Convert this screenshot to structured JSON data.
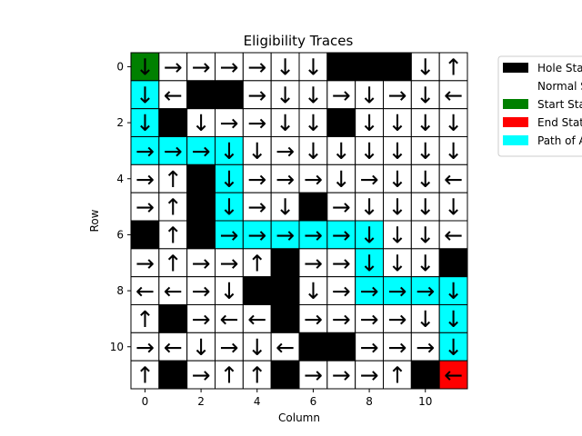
{
  "chart_data": {
    "type": "heatmap",
    "title": "Eligibility Traces",
    "xlabel": "Column",
    "ylabel": "Row",
    "xlim": [
      -0.5,
      11.5
    ],
    "ylim": [
      11.5,
      -0.5
    ],
    "xticks": [
      0,
      2,
      4,
      6,
      8,
      10
    ],
    "yticks": [
      0,
      2,
      4,
      6,
      8,
      10
    ],
    "grid": false,
    "legend_position": "upper-right-outside",
    "colors": {
      "hole": "#000000",
      "normal": "#ffffff",
      "start": "#008000",
      "end": "#ff0000",
      "path": "#00ffff"
    },
    "legend": [
      {
        "key": "hole",
        "label": "Hole State"
      },
      {
        "key": "normal",
        "label": "Normal State"
      },
      {
        "key": "start",
        "label": "Start State"
      },
      {
        "key": "end",
        "label": "End State"
      },
      {
        "key": "path",
        "label": "Path of Agent"
      }
    ],
    "grid_cells": [
      "SNNNNNNHHHNN",
      "PNHHNNNNNNNN",
      "PHNNNNNHNNNN",
      "PPPPNNNNNNNN",
      "NNHPNNNNNNNN",
      "NNHPNNHNNNNN",
      "HNHPPPPPPNNN",
      "NNNNNHNNPNNH",
      "NNNNHHNNPPPP",
      "NHNNNHNNNNNP",
      "NNNNNNHHNNNP",
      "NHNNNHNNNNHE"
    ],
    "arrows": [
      "DRRRRDDXXXDU",
      "DLXXRDDRDRDL",
      "DXDRRDDXDDDD",
      "RRRDDRDDDDDD",
      "RUXDRRRDRDDL",
      "RUXDRDXRDDDD",
      "XUXRRRRRDDDL",
      "RURRUXRRDDDX",
      "LLRDXXDRRRRD",
      "UXRLLXRRRRDD",
      "RLDRDLXXRRRD",
      "UXRUUXRRRUXL"
    ]
  }
}
